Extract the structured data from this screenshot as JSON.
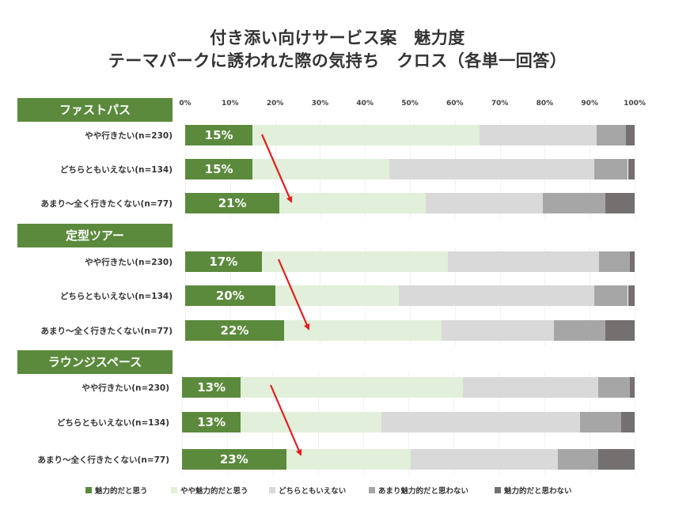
{
  "title_line1": "付き添い向けサービス案　魅力度",
  "title_line2": "テーマパークに誘われた際の気持ち　クロス（各単一回答）",
  "axis_ticks": [
    "0%",
    "10%",
    "20%",
    "30%",
    "40%",
    "50%",
    "60%",
    "70%",
    "80%",
    "90%",
    "100%"
  ],
  "colors": [
    "#5b8a3c",
    "#e2efda",
    "#d9d9d9",
    "#a6a6a6",
    "#747070"
  ],
  "legend": [
    "魅力的だと思う",
    "やや魅力的だと思う",
    "どちらともいえない",
    "あまり魅力的だと思わない",
    "魅力的だと思わない"
  ],
  "chart_data": [
    {
      "type": "bar",
      "stacked": true,
      "orientation": "horizontal",
      "title": "ファストパス",
      "categories": [
        "やや行きたい(n=230)",
        "どちらともいえない(n=134)",
        "あまり～全く行きたくない(n=77)"
      ],
      "series": [
        {
          "name": "魅力的だと思う",
          "values": [
            15,
            15,
            21
          ]
        },
        {
          "name": "やや魅力的だと思う",
          "values": [
            50.5,
            30.5,
            32.5
          ]
        },
        {
          "name": "どちらともいえない",
          "values": [
            26,
            45.5,
            26
          ]
        },
        {
          "name": "あまり魅力的だと思わない",
          "values": [
            6.5,
            7.5,
            14
          ]
        },
        {
          "name": "魅力的だと思わない",
          "values": [
            2,
            1.5,
            6.5
          ]
        }
      ],
      "value_labels": [
        "15%",
        "15%",
        "21%"
      ],
      "xlim": [
        0,
        100
      ]
    },
    {
      "type": "bar",
      "stacked": true,
      "orientation": "horizontal",
      "title": "定型ツアー",
      "categories": [
        "やや行きたい(n=230)",
        "どちらともいえない(n=134)",
        "あまり～全く行きたくない(n=77)"
      ],
      "series": [
        {
          "name": "魅力的だと思う",
          "values": [
            17,
            20,
            22
          ]
        },
        {
          "name": "やや魅力的だと思う",
          "values": [
            41.5,
            27.5,
            35
          ]
        },
        {
          "name": "どちらともいえない",
          "values": [
            33.5,
            43.5,
            25
          ]
        },
        {
          "name": "あまり魅力的だと思わない",
          "values": [
            7,
            7.5,
            11.5
          ]
        },
        {
          "name": "魅力的だと思わない",
          "values": [
            1,
            1.5,
            6.5
          ]
        }
      ],
      "value_labels": [
        "17%",
        "20%",
        "22%"
      ],
      "xlim": [
        0,
        100
      ]
    },
    {
      "type": "bar",
      "stacked": true,
      "orientation": "horizontal",
      "title": "ラウンジスペース",
      "categories": [
        "やや行きたい(n=230)",
        "どちらともいえない(n=134)",
        "あまり～全く行きたくない(n=77)"
      ],
      "series": [
        {
          "name": "魅力的だと思う",
          "values": [
            13,
            13,
            23
          ]
        },
        {
          "name": "やや魅力的だと思う",
          "values": [
            49,
            31,
            27.5
          ]
        },
        {
          "name": "どちらともいえない",
          "values": [
            30,
            44,
            32.5
          ]
        },
        {
          "name": "あまり魅力的だと思わない",
          "values": [
            7,
            9,
            9
          ]
        },
        {
          "name": "魅力的だと思わない",
          "values": [
            1,
            3,
            8
          ]
        }
      ],
      "value_labels": [
        "13%",
        "13%",
        "23%"
      ],
      "xlim": [
        0,
        100
      ]
    }
  ]
}
